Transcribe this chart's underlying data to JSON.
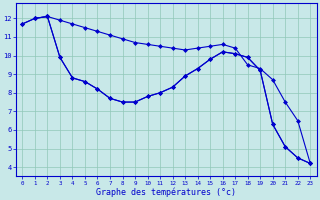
{
  "bg_color": "#c8e8e8",
  "line_color": "#0000cc",
  "xlabel": "Graphe des températures (°c)",
  "xlim": [
    -0.5,
    23.5
  ],
  "ylim": [
    3.5,
    12.8
  ],
  "yticks": [
    4,
    5,
    6,
    7,
    8,
    9,
    10,
    11,
    12
  ],
  "xticks": [
    0,
    1,
    2,
    3,
    4,
    5,
    6,
    7,
    8,
    9,
    10,
    11,
    12,
    13,
    14,
    15,
    16,
    17,
    18,
    19,
    20,
    21,
    22,
    23
  ],
  "line1_x": [
    0,
    1,
    2,
    3,
    4,
    5,
    6,
    7,
    8,
    9,
    10,
    11,
    12,
    13,
    14,
    15,
    16,
    17,
    18,
    19,
    20,
    21,
    22,
    23
  ],
  "line1_y": [
    11.7,
    12.0,
    12.1,
    11.9,
    11.7,
    11.5,
    11.3,
    11.1,
    10.9,
    10.7,
    10.6,
    10.5,
    10.4,
    10.3,
    10.4,
    10.5,
    10.6,
    10.4,
    9.5,
    9.3,
    8.7,
    7.5,
    6.5,
    4.2
  ],
  "line2_x": [
    1,
    2,
    3,
    4,
    5,
    6,
    7,
    8,
    9,
    10,
    11,
    12,
    13,
    14,
    15,
    16,
    17,
    18,
    19,
    20,
    21,
    22,
    23
  ],
  "line2_y": [
    12.0,
    12.1,
    9.9,
    8.8,
    8.6,
    8.2,
    7.7,
    7.5,
    7.5,
    7.8,
    8.0,
    8.3,
    8.9,
    9.3,
    9.8,
    10.2,
    10.1,
    9.9,
    9.2,
    6.3,
    5.1,
    4.5,
    4.2
  ],
  "line3_x": [
    0,
    1,
    2,
    3,
    4,
    5,
    6,
    7,
    8,
    9,
    10,
    11,
    12,
    13,
    14,
    15,
    16,
    17,
    18,
    19,
    20,
    21,
    22,
    23
  ],
  "line3_y": [
    11.7,
    12.0,
    12.1,
    9.9,
    8.8,
    8.6,
    8.2,
    7.7,
    7.5,
    7.5,
    7.8,
    8.0,
    8.3,
    8.9,
    9.3,
    9.8,
    10.2,
    10.1,
    9.9,
    9.2,
    6.3,
    5.1,
    4.5,
    4.2
  ]
}
